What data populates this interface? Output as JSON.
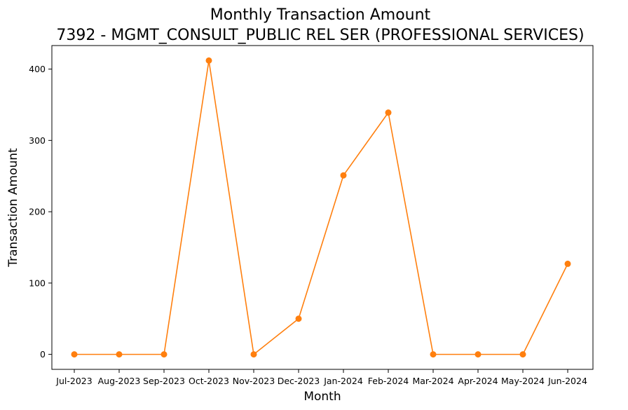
{
  "chart_data": {
    "type": "line",
    "title": "Monthly Transaction Amount",
    "subtitle": "7392 - MGMT_CONSULT_PUBLIC REL SER (PROFESSIONAL SERVICES)",
    "xlabel": "Month",
    "ylabel": "Transaction Amount",
    "categories": [
      "Jul-2023",
      "Aug-2023",
      "Sep-2023",
      "Oct-2023",
      "Nov-2023",
      "Dec-2023",
      "Jan-2024",
      "Feb-2024",
      "Mar-2024",
      "Apr-2024",
      "May-2024",
      "Jun-2024"
    ],
    "series": [
      {
        "values": [
          0,
          0,
          0,
          412,
          0,
          50,
          251,
          339,
          0,
          0,
          0,
          127
        ],
        "color": "#ff7f0e"
      }
    ],
    "yticks": [
      0,
      100,
      200,
      300,
      400
    ],
    "ylim": [
      -21,
      433
    ],
    "grid": false,
    "legend": "none"
  }
}
